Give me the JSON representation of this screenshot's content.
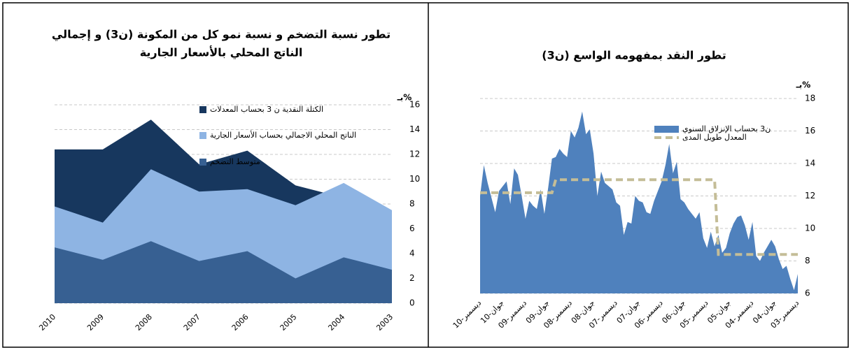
{
  "chart_data": [
    {
      "type": "area",
      "title": [
        "تطور نسبة التضخم و نسبة نمو كل من المكونة (ن3) و إجمالي",
        "الناتج المحلي بالأسعار الجارية"
      ],
      "unit_label": "بـ%",
      "categories": [
        "2010",
        "2009",
        "2008",
        "2007",
        "2006",
        "2005",
        "2004",
        "2003"
      ],
      "series": [
        {
          "name": "الكتلة النقدية ن 3 بحساب المعدلات",
          "color": "#17375e",
          "type": "area",
          "values": [
            12.4,
            12.4,
            14.8,
            11.2,
            12.3,
            9.5,
            8.5,
            6.0
          ]
        },
        {
          "name": "الناتج المحلي الاجمالي بحساب الأسعار الجارية",
          "color": "#8eb4e3",
          "type": "area",
          "values": [
            7.8,
            6.5,
            10.8,
            9.0,
            9.2,
            7.9,
            9.7,
            7.5
          ]
        },
        {
          "name": "متوسط التضخم",
          "color": "#376092",
          "type": "area",
          "values": [
            4.5,
            3.5,
            5.0,
            3.4,
            4.2,
            2.0,
            3.7,
            2.7
          ]
        }
      ],
      "ylim": [
        0,
        16
      ],
      "yticks": [
        0,
        2,
        4,
        6,
        8,
        10,
        12,
        14,
        16
      ],
      "grid": true
    },
    {
      "type": "area",
      "title": "تطور النقد بمفهومه الواسع (ن3)",
      "unit_label": "بـ%",
      "categories": [
        "ديسمبر-10",
        null,
        null,
        null,
        null,
        null,
        "جوان-10",
        null,
        null,
        null,
        null,
        null,
        "ديسمبر-09",
        null,
        null,
        null,
        null,
        null,
        "جوان-09",
        null,
        null,
        null,
        null,
        null,
        "ديسمبر-08",
        null,
        null,
        null,
        null,
        null,
        "جوان-08",
        null,
        null,
        null,
        null,
        null,
        "ديسمبر-07",
        null,
        null,
        null,
        null,
        null,
        "جوان-07",
        null,
        null,
        null,
        null,
        null,
        "ديسمبر-06",
        null,
        null,
        null,
        null,
        null,
        "جوان-06",
        null,
        null,
        null,
        null,
        null,
        "ديسمبر-05",
        null,
        null,
        null,
        null,
        null,
        "جوان-05",
        null,
        null,
        null,
        null,
        null,
        "ديسمبر-04",
        null,
        null,
        null,
        null,
        null,
        "جوان-04",
        null,
        null,
        null,
        null,
        null,
        "ديسمبر-03"
      ],
      "series": [
        {
          "name": "ن3 بحساب الإنزلاق السنوي",
          "color": "#4f81bd",
          "type": "area",
          "values": [
            12.0,
            13.9,
            12.8,
            11.9,
            11.0,
            12.3,
            12.6,
            12.9,
            11.5,
            13.7,
            13.3,
            12.0,
            10.6,
            11.7,
            11.4,
            11.2,
            12.4,
            10.9,
            12.5,
            14.3,
            14.4,
            14.9,
            14.6,
            14.4,
            16.0,
            15.6,
            16.2,
            17.2,
            15.8,
            16.1,
            14.6,
            12.0,
            13.5,
            12.8,
            12.6,
            12.4,
            11.6,
            11.4,
            9.6,
            10.4,
            10.3,
            12.0,
            11.7,
            11.6,
            11.0,
            10.9,
            11.7,
            12.3,
            12.9,
            13.9,
            15.2,
            13.4,
            14.1,
            11.8,
            11.6,
            11.2,
            10.9,
            10.6,
            11.0,
            9.4,
            8.8,
            9.8,
            8.9,
            9.6,
            8.5,
            8.8,
            9.7,
            10.3,
            10.7,
            10.8,
            10.2,
            9.3,
            10.4,
            8.3,
            8.0,
            8.5,
            8.9,
            9.3,
            8.9,
            8.1,
            7.5,
            7.7,
            6.9,
            6.2,
            7.2
          ]
        },
        {
          "name": "المعدل طويل المدى",
          "color": "#c4bd97",
          "type": "line",
          "dashed": true,
          "values": [
            12.2,
            12.2,
            12.2,
            12.2,
            12.2,
            12.2,
            12.2,
            12.2,
            12.2,
            12.2,
            12.2,
            12.2,
            12.2,
            12.2,
            12.2,
            12.2,
            12.2,
            12.2,
            12.2,
            12.2,
            13.0,
            13.0,
            13.0,
            13.0,
            13.0,
            13.0,
            13.0,
            13.0,
            13.0,
            13.0,
            13.0,
            13.0,
            13.0,
            13.0,
            13.0,
            13.0,
            13.0,
            13.0,
            13.0,
            13.0,
            13.0,
            13.0,
            13.0,
            13.0,
            13.0,
            13.0,
            13.0,
            13.0,
            13.0,
            13.0,
            13.0,
            13.0,
            13.0,
            13.0,
            13.0,
            13.0,
            13.0,
            13.0,
            13.0,
            13.0,
            13.0,
            13.0,
            13.0,
            8.4,
            8.4,
            8.4,
            8.4,
            8.4,
            8.4,
            8.4,
            8.4,
            8.4,
            8.4,
            8.4,
            8.4,
            8.4,
            8.4,
            8.4,
            8.4,
            8.4,
            8.4,
            8.4,
            8.4,
            8.4,
            8.4
          ]
        }
      ],
      "ylim": [
        6,
        18
      ],
      "yticks": [
        6,
        8,
        10,
        12,
        14,
        16,
        18
      ],
      "grid": true
    }
  ]
}
